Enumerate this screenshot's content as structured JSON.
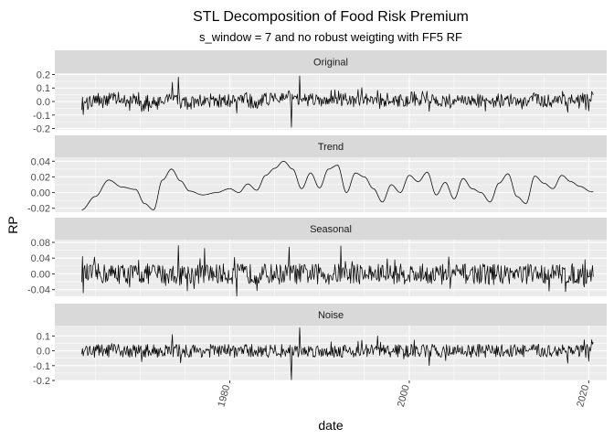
{
  "chart_data": {
    "type": "line",
    "title": "STL Decomposition of Food Risk Premium",
    "subtitle": "s_window = 7 and no robust weigting with FF5 RF",
    "xlabel": "date",
    "ylabel": "RP",
    "xlim": [
      1960.5,
      2022
    ],
    "x_ticks": [
      1980,
      2000,
      2020
    ],
    "x_tick_labels": [
      "1980",
      "2000",
      "2020"
    ],
    "x_start": 1963.5,
    "x_end": 2020.5,
    "line_color": "#000000",
    "panel_background": "#ebebeb",
    "strip_background": "#d9d9d9",
    "grid": true,
    "panels": [
      {
        "name": "Original",
        "ylim": [
          -0.21,
          0.21
        ],
        "yticks": [
          -0.2,
          -0.1,
          0.0,
          0.1,
          0.2
        ],
        "ytick_labels": [
          "-0.2",
          "-0.1",
          "0.0",
          "0.1",
          "0.2"
        ],
        "amplitude": 0.055,
        "values_sample": [
          0.03,
          -0.05,
          0.08,
          -0.02,
          0.06,
          -0.09,
          0.12,
          -0.16,
          0.18,
          -0.04,
          0.05,
          0.19,
          -0.19,
          0.02
        ]
      },
      {
        "name": "Trend",
        "ylim": [
          -0.025,
          0.045
        ],
        "yticks": [
          -0.02,
          0.0,
          0.02,
          0.04
        ],
        "ytick_labels": [
          "-0.02",
          "0.00",
          "0.02",
          "0.04"
        ],
        "x": [
          1963.5,
          1965,
          1966.5,
          1968,
          1969.5,
          1970.5,
          1971.5,
          1972.5,
          1973.5,
          1974.5,
          1975.5,
          1977,
          1978.5,
          1980,
          1981,
          1982,
          1983,
          1984,
          1985,
          1986,
          1987,
          1988,
          1989,
          1990,
          1991,
          1992,
          1993,
          1994,
          1995,
          1996,
          1997,
          1998,
          1999,
          2000,
          2001,
          2002,
          2003,
          2004,
          2005,
          2006,
          2007,
          2008,
          2009,
          2010,
          2011,
          2012,
          2013,
          2014,
          2015,
          2016,
          2017,
          2018,
          2019,
          2020.3
        ],
        "values": [
          -0.022,
          -0.005,
          0.016,
          0.007,
          0.004,
          -0.014,
          -0.022,
          0.016,
          0.03,
          0.015,
          0.002,
          -0.003,
          0.0,
          0.005,
          0.0,
          0.011,
          0.003,
          0.022,
          0.031,
          0.04,
          0.03,
          0.005,
          0.025,
          0.006,
          0.03,
          0.035,
          0.0,
          0.025,
          0.02,
          0.005,
          -0.012,
          0.01,
          0.0,
          0.022,
          0.014,
          0.026,
          -0.003,
          0.013,
          -0.008,
          0.018,
          0.005,
          0.0,
          -0.012,
          0.012,
          0.024,
          -0.005,
          -0.014,
          0.021,
          0.012,
          0.005,
          0.022,
          0.014,
          0.008,
          0.001
        ]
      },
      {
        "name": "Seasonal",
        "ylim": [
          -0.057,
          0.087
        ],
        "yticks": [
          -0.04,
          0.0,
          0.04,
          0.08
        ],
        "ytick_labels": [
          "-0.04",
          "0.00",
          "0.04",
          "0.08"
        ],
        "amplitude": 0.026,
        "values_sample": [
          0.025,
          -0.03,
          0.07,
          -0.055,
          0.05,
          -0.045,
          0.065,
          -0.05,
          0.04
        ]
      },
      {
        "name": "Noise",
        "ylim": [
          -0.2,
          0.17
        ],
        "yticks": [
          -0.2,
          -0.1,
          0.0,
          0.1
        ],
        "ytick_labels": [
          "-0.2",
          "-0.1",
          "0.0",
          "0.1"
        ],
        "amplitude": 0.045,
        "values_sample": [
          0.08,
          -0.06,
          0.05,
          -0.1,
          0.15,
          -0.19,
          0.1,
          -0.07,
          0.06
        ]
      }
    ]
  }
}
